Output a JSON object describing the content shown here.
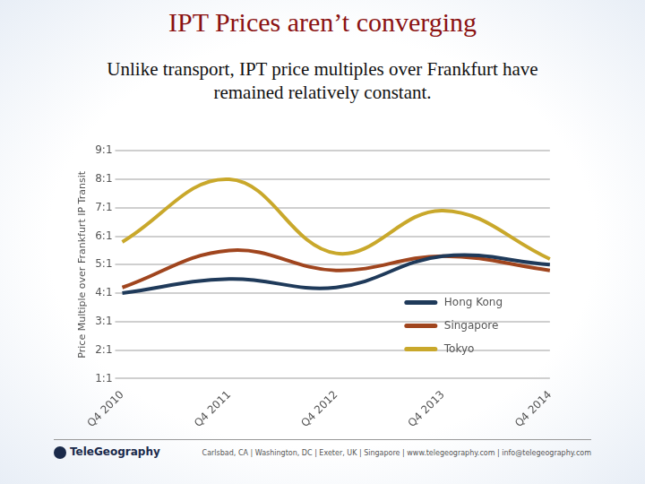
{
  "title": "IPT Prices aren’t converging",
  "subtitle": "Unlike transport, IPT price multiples over Frankfurt have remained relatively constant.",
  "chart_data": {
    "type": "line",
    "y_label": "Price Multiple over Frankfurt IP Transit",
    "categories": [
      "Q4 2010",
      "Q4 2011",
      "Q4 2012",
      "Q4 2013",
      "Q4 2014"
    ],
    "series": [
      {
        "name": "Hong Kong",
        "color": "#1f3a5a",
        "values": [
          4.0,
          4.5,
          4.2,
          5.3,
          5.0
        ]
      },
      {
        "name": "Singapore",
        "color": "#a0451e",
        "values": [
          4.2,
          5.5,
          4.8,
          5.3,
          4.8
        ]
      },
      {
        "name": "Tokyo",
        "color": "#c9a82b",
        "values": [
          5.8,
          8.0,
          5.4,
          6.9,
          5.2
        ]
      }
    ],
    "ylim": [
      1,
      9
    ],
    "yticks": [
      {
        "value": 1,
        "label": "1:1"
      },
      {
        "value": 2,
        "label": "2:1"
      },
      {
        "value": 3,
        "label": "3:1"
      },
      {
        "value": 4,
        "label": "4:1"
      },
      {
        "value": 5,
        "label": "5:1"
      },
      {
        "value": 6,
        "label": "6:1"
      },
      {
        "value": 7,
        "label": "7:1"
      },
      {
        "value": 8,
        "label": "8:1"
      },
      {
        "value": 9,
        "label": "9:1"
      }
    ],
    "grid": true,
    "legend": "lower right"
  },
  "footer": {
    "logo": "TeleGeography",
    "text": "Carlsbad, CA | Washington, DC | Exeter, UK | Singapore | www.telegeography.com | info@telegeography.com"
  }
}
